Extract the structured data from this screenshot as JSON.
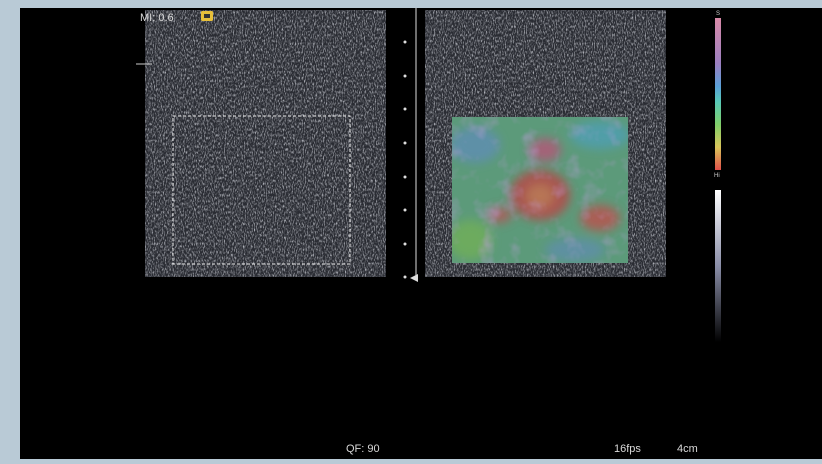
{
  "overlay": {
    "mi": "MI: 0.6",
    "qf": "QF: 90",
    "fps": "16fps",
    "depth": "4cm",
    "scale_top": "S",
    "scale_bottom": "Hi"
  }
}
